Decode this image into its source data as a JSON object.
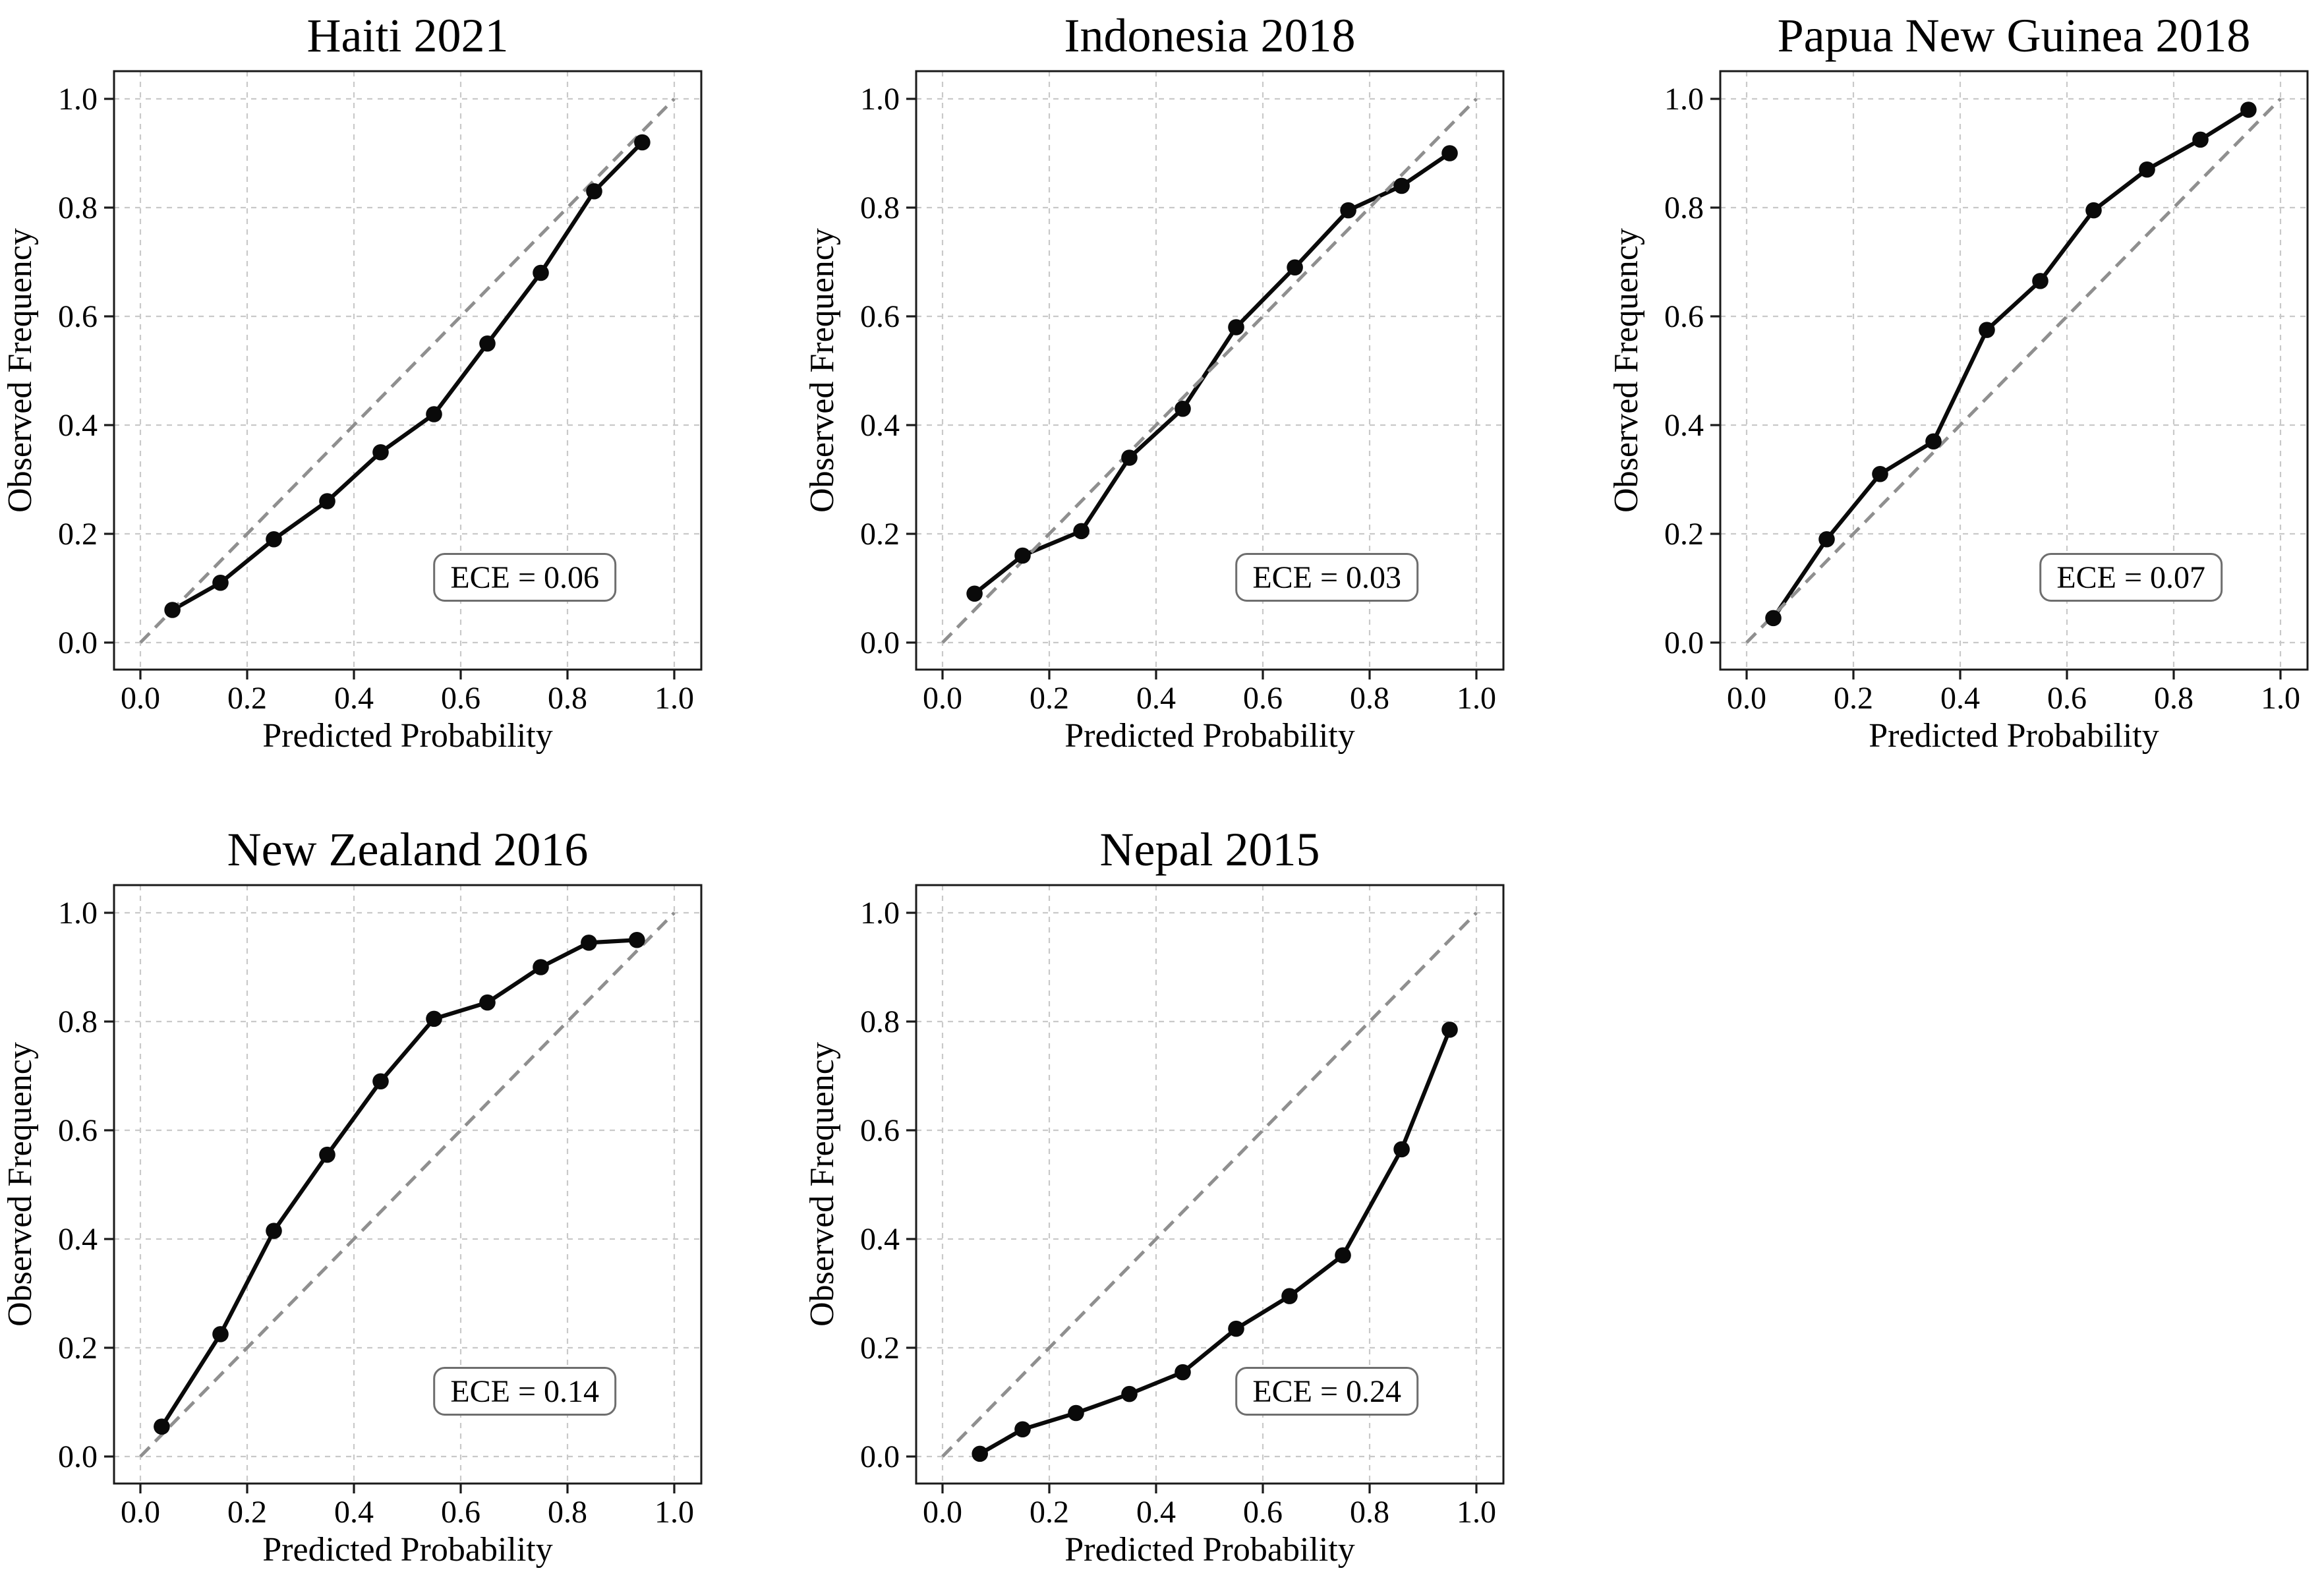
{
  "figure": {
    "background": "#ffffff",
    "text_color": "#000000",
    "grid_color": "#c9c9c9",
    "reference_line_color": "#8f8f8f",
    "curve_color": "#0a0a0a",
    "spine_color": "#1a1a1a",
    "annotation_border_color": "#6e6e6e",
    "annotation_fill": "#ffffff"
  },
  "chart_data": [
    {
      "type": "line",
      "title": "Haiti 2021",
      "xlabel": "Predicted Probability",
      "ylabel": "Observed Frequency",
      "xlim": [
        -0.05,
        1.05
      ],
      "ylim": [
        -0.05,
        1.05
      ],
      "xticks": [
        "0.0",
        "0.2",
        "0.4",
        "0.6",
        "0.8",
        "1.0"
      ],
      "yticks": [
        "0.0",
        "0.2",
        "0.4",
        "0.6",
        "0.8",
        "1.0"
      ],
      "grid": true,
      "grid_pos": [
        0,
        0
      ],
      "reference_line": {
        "style": "dashed",
        "from": [
          0,
          0
        ],
        "to": [
          1,
          1
        ]
      },
      "series": [
        {
          "name": "calibration-curve",
          "marker": "circle",
          "x": [
            0.06,
            0.15,
            0.25,
            0.35,
            0.45,
            0.55,
            0.65,
            0.75,
            0.85,
            0.94
          ],
          "y": [
            0.06,
            0.11,
            0.19,
            0.26,
            0.35,
            0.42,
            0.55,
            0.68,
            0.83,
            0.92
          ]
        }
      ],
      "annotation": {
        "text": "ECE = 0.06",
        "position": [
          0.72,
          0.12
        ]
      }
    },
    {
      "type": "line",
      "title": "Indonesia 2018",
      "xlabel": "Predicted Probability",
      "ylabel": "Observed Frequency",
      "xlim": [
        -0.05,
        1.05
      ],
      "ylim": [
        -0.05,
        1.05
      ],
      "xticks": [
        "0.0",
        "0.2",
        "0.4",
        "0.6",
        "0.8",
        "1.0"
      ],
      "yticks": [
        "0.0",
        "0.2",
        "0.4",
        "0.6",
        "0.8",
        "1.0"
      ],
      "grid": true,
      "grid_pos": [
        0,
        1
      ],
      "reference_line": {
        "style": "dashed",
        "from": [
          0,
          0
        ],
        "to": [
          1,
          1
        ]
      },
      "series": [
        {
          "name": "calibration-curve",
          "marker": "circle",
          "x": [
            0.06,
            0.15,
            0.26,
            0.35,
            0.45,
            0.55,
            0.66,
            0.76,
            0.86,
            0.95
          ],
          "y": [
            0.09,
            0.16,
            0.205,
            0.34,
            0.43,
            0.58,
            0.69,
            0.795,
            0.84,
            0.9
          ]
        }
      ],
      "annotation": {
        "text": "ECE = 0.03",
        "position": [
          0.72,
          0.12
        ]
      }
    },
    {
      "type": "line",
      "title": "Papua New Guinea 2018",
      "xlabel": "Predicted Probability",
      "ylabel": "Observed Frequency",
      "xlim": [
        -0.05,
        1.05
      ],
      "ylim": [
        -0.05,
        1.05
      ],
      "xticks": [
        "0.0",
        "0.2",
        "0.4",
        "0.6",
        "0.8",
        "1.0"
      ],
      "yticks": [
        "0.0",
        "0.2",
        "0.4",
        "0.6",
        "0.8",
        "1.0"
      ],
      "grid": true,
      "grid_pos": [
        0,
        2
      ],
      "reference_line": {
        "style": "dashed",
        "from": [
          0,
          0
        ],
        "to": [
          1,
          1
        ]
      },
      "series": [
        {
          "name": "calibration-curve",
          "marker": "circle",
          "x": [
            0.05,
            0.15,
            0.25,
            0.35,
            0.45,
            0.55,
            0.65,
            0.75,
            0.85,
            0.94
          ],
          "y": [
            0.045,
            0.19,
            0.31,
            0.37,
            0.575,
            0.665,
            0.795,
            0.87,
            0.925,
            0.98
          ]
        }
      ],
      "annotation": {
        "text": "ECE = 0.07",
        "position": [
          0.72,
          0.12
        ]
      }
    },
    {
      "type": "line",
      "title": "New Zealand 2016",
      "xlabel": "Predicted Probability",
      "ylabel": "Observed Frequency",
      "xlim": [
        -0.05,
        1.05
      ],
      "ylim": [
        -0.05,
        1.05
      ],
      "xticks": [
        "0.0",
        "0.2",
        "0.4",
        "0.6",
        "0.8",
        "1.0"
      ],
      "yticks": [
        "0.0",
        "0.2",
        "0.4",
        "0.6",
        "0.8",
        "1.0"
      ],
      "grid": true,
      "grid_pos": [
        1,
        0
      ],
      "reference_line": {
        "style": "dashed",
        "from": [
          0,
          0
        ],
        "to": [
          1,
          1
        ]
      },
      "series": [
        {
          "name": "calibration-curve",
          "marker": "circle",
          "x": [
            0.04,
            0.15,
            0.25,
            0.35,
            0.45,
            0.55,
            0.65,
            0.75,
            0.84,
            0.93
          ],
          "y": [
            0.055,
            0.225,
            0.415,
            0.555,
            0.69,
            0.805,
            0.835,
            0.9,
            0.945,
            0.95
          ]
        }
      ],
      "annotation": {
        "text": "ECE = 0.14",
        "position": [
          0.72,
          0.12
        ]
      }
    },
    {
      "type": "line",
      "title": "Nepal 2015",
      "xlabel": "Predicted Probability",
      "ylabel": "Observed Frequency",
      "xlim": [
        -0.05,
        1.05
      ],
      "ylim": [
        -0.05,
        1.05
      ],
      "xticks": [
        "0.0",
        "0.2",
        "0.4",
        "0.6",
        "0.8",
        "1.0"
      ],
      "yticks": [
        "0.0",
        "0.2",
        "0.4",
        "0.6",
        "0.8",
        "1.0"
      ],
      "grid": true,
      "grid_pos": [
        1,
        1
      ],
      "reference_line": {
        "style": "dashed",
        "from": [
          0,
          0
        ],
        "to": [
          1,
          1
        ]
      },
      "series": [
        {
          "name": "calibration-curve",
          "marker": "circle",
          "x": [
            0.07,
            0.15,
            0.25,
            0.35,
            0.45,
            0.55,
            0.65,
            0.75,
            0.86,
            0.95
          ],
          "y": [
            0.005,
            0.05,
            0.08,
            0.115,
            0.155,
            0.235,
            0.295,
            0.37,
            0.565,
            0.785
          ]
        }
      ],
      "annotation": {
        "text": "ECE = 0.24",
        "position": [
          0.72,
          0.12
        ]
      }
    }
  ]
}
